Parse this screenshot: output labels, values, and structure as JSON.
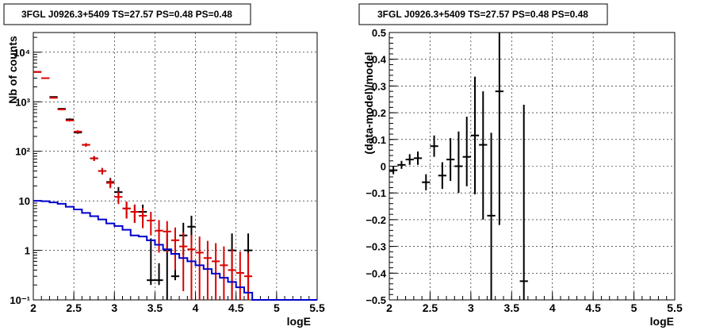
{
  "chart_data": [
    {
      "type": "scatter",
      "title": "3FGL J0926.3+5409 TS=27.57 PS=0.48 PS=0.48",
      "xlabel": "logE",
      "ylabel": "Nb of counts",
      "xlim": [
        2,
        5.5
      ],
      "ylim": [
        0.1,
        25000
      ],
      "yscale": "log",
      "grid": true,
      "x_ticks": [
        2,
        2.5,
        3,
        3.5,
        4,
        4.5,
        5,
        5.5
      ],
      "x_tick_labels": [
        "2",
        "2.5",
        "3",
        "3.5",
        "4",
        "4.5",
        "5",
        "5.5"
      ],
      "y_ticks": [
        0.1,
        1,
        10,
        100,
        1000,
        10000
      ],
      "y_tick_labels": [
        "10⁻¹",
        "1",
        "10",
        "10²",
        "10³",
        "10⁴"
      ],
      "series": [
        {
          "color": "#000000",
          "bin_half_width": 0.05,
          "x": [
            2.05,
            2.15,
            2.25,
            2.35,
            2.45,
            2.55,
            2.65,
            2.75,
            2.85,
            2.95,
            3.05,
            3.15,
            3.25,
            3.35,
            3.45,
            3.55,
            3.65,
            3.75,
            3.85,
            3.95,
            4.45,
            4.65
          ],
          "y": [
            4000,
            3000,
            1250,
            720,
            440,
            240,
            135,
            72,
            40,
            24,
            15,
            7,
            6,
            6,
            0.25,
            0.25,
            1,
            0.3,
            2,
            3,
            1,
            1
          ],
          "err_low": [
            60,
            50,
            35,
            27,
            21,
            15,
            11,
            8,
            6,
            5,
            4,
            2.6,
            2.4,
            2.4,
            0.05,
            0.05,
            0.9,
            0.05,
            1.2,
            1.6,
            0.9,
            0.9
          ],
          "err_high": [
            60,
            50,
            35,
            27,
            21,
            15,
            11,
            8,
            6,
            5,
            4,
            2.6,
            2.4,
            2.4,
            1.5,
            0.3,
            1.2,
            1.2,
            1.6,
            2,
            1.2,
            1.2
          ]
        },
        {
          "color": "#dd0000",
          "bin_half_width": 0.05,
          "x": [
            2.05,
            2.15,
            2.25,
            2.35,
            2.45,
            2.55,
            2.65,
            2.75,
            2.85,
            2.95,
            3.05,
            3.15,
            3.25,
            3.35,
            3.45,
            3.55,
            3.65,
            3.75,
            3.85,
            3.95,
            4.05,
            4.15,
            4.25,
            4.35,
            4.45,
            4.55,
            4.65
          ],
          "y": [
            4000,
            3000,
            1200,
            700,
            420,
            250,
            135,
            72,
            40,
            23,
            12,
            7,
            6,
            5,
            4,
            2.5,
            2.4,
            1.6,
            1.2,
            1.05,
            0.9,
            0.7,
            0.6,
            0.5,
            0.4,
            0.35,
            0.3
          ],
          "err_low": [
            60,
            50,
            35,
            26,
            20,
            16,
            11,
            8,
            6,
            5,
            3.4,
            2.6,
            2.4,
            2.2,
            2,
            1.6,
            1.5,
            1.2,
            1.05,
            1,
            0.9,
            0.7,
            0.6,
            0.5,
            0.4,
            0.35,
            0.3
          ],
          "err_high": [
            60,
            50,
            35,
            26,
            20,
            16,
            11,
            8,
            6,
            5,
            3.4,
            2.6,
            2.4,
            2.2,
            2,
            1.6,
            1.5,
            1.3,
            1.1,
            1,
            1,
            0.85,
            0.8,
            0.7,
            0.65,
            0.6,
            0.6
          ]
        },
        {
          "type": "step",
          "color": "#0000cc",
          "bin_edges": [
            2.0,
            2.1,
            2.2,
            2.3,
            2.4,
            2.5,
            2.6,
            2.7,
            2.8,
            2.9,
            3.0,
            3.1,
            3.2,
            3.3,
            3.4,
            3.5,
            3.6,
            3.7,
            3.8,
            3.9,
            4.0,
            4.1,
            4.2,
            4.3,
            4.4,
            4.5,
            4.6,
            4.7,
            4.8,
            4.9,
            5.0,
            5.1,
            5.2,
            5.3,
            5.4,
            5.5
          ],
          "values": [
            10,
            9.8,
            9.3,
            8.7,
            7.6,
            6.7,
            5.7,
            4.9,
            4.2,
            3.5,
            3.1,
            2.6,
            2.0,
            1.9,
            1.6,
            1.3,
            1.05,
            0.85,
            0.7,
            0.6,
            0.5,
            0.42,
            0.34,
            0.28,
            0.23,
            0.18,
            0.14,
            0.1,
            0.1,
            0.1,
            0.1,
            0.1,
            0.1,
            0.1,
            0.1
          ]
        }
      ]
    },
    {
      "type": "scatter",
      "title": "3FGL J0926.3+5409 TS=27.57 PS=0.48 PS=0.48",
      "xlabel": "logE",
      "ylabel": "(data-model)/model",
      "xlim": [
        2,
        5.5
      ],
      "ylim": [
        -0.5,
        0.5
      ],
      "grid": true,
      "x_ticks": [
        2,
        2.5,
        3,
        3.5,
        4,
        4.5,
        5,
        5.5
      ],
      "x_tick_labels": [
        "2",
        "2.5",
        "3",
        "3.5",
        "4",
        "4.5",
        "5",
        "5.5"
      ],
      "y_ticks": [
        -0.5,
        -0.4,
        -0.3,
        -0.2,
        -0.1,
        0,
        0.1,
        0.2,
        0.3,
        0.4,
        0.5
      ],
      "y_tick_labels": [
        "−0.5",
        "−0.4",
        "−0.3",
        "−0.2",
        "−0.1",
        "0",
        "0.1",
        "0.2",
        "0.3",
        "0.4",
        "0.5"
      ],
      "series": [
        {
          "color": "#000000",
          "bin_half_width": 0.05,
          "x": [
            2.05,
            2.15,
            2.25,
            2.35,
            2.45,
            2.55,
            2.65,
            2.75,
            2.85,
            2.95,
            3.05,
            3.15,
            3.25,
            3.35,
            3.65
          ],
          "y": [
            -0.015,
            0.005,
            0.025,
            0.03,
            -0.06,
            0.075,
            -0.035,
            0.025,
            0,
            0.035,
            0.115,
            0.08,
            -0.185,
            0.28,
            -0.43
          ],
          "err_low": [
            0.015,
            0.015,
            0.02,
            0.025,
            0.03,
            0.04,
            0.05,
            0.08,
            0.1,
            0.11,
            0.22,
            0.28,
            0.32,
            0.5,
            0.07
          ],
          "err_high": [
            0.015,
            0.015,
            0.02,
            0.025,
            0.03,
            0.04,
            0.05,
            0.08,
            0.13,
            0.15,
            0.22,
            0.2,
            0.31,
            0.22,
            0.66
          ]
        }
      ]
    }
  ]
}
